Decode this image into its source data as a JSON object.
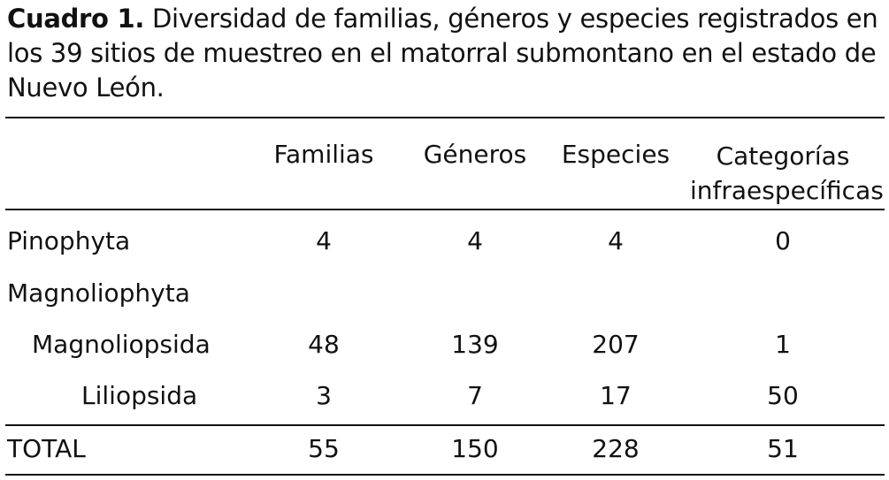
{
  "caption": {
    "label": "Cuadro 1.",
    "text": "Diversidad de familias, géneros y especies registrados en los 39 sitios de muestreo en el matorral submontano en el estado de Nuevo León."
  },
  "table": {
    "headers": [
      "Familias",
      "Géneros",
      "Especies",
      "Categorías",
      "infraespecíficas"
    ],
    "rows": [
      {
        "label": "Pinophyta",
        "values": [
          "4",
          "4",
          "4",
          "0"
        ]
      },
      {
        "label": "Magnoliophyta",
        "values": [
          "",
          "",
          "",
          ""
        ]
      },
      {
        "label": "Magnoliopsida",
        "values": [
          "48",
          "139",
          "207",
          "1"
        ]
      },
      {
        "label": "Liliopsida",
        "values": [
          "3",
          "7",
          "17",
          "50"
        ]
      }
    ],
    "total": {
      "label": "TOTAL",
      "values": [
        "55",
        "150",
        "228",
        "51"
      ]
    }
  }
}
